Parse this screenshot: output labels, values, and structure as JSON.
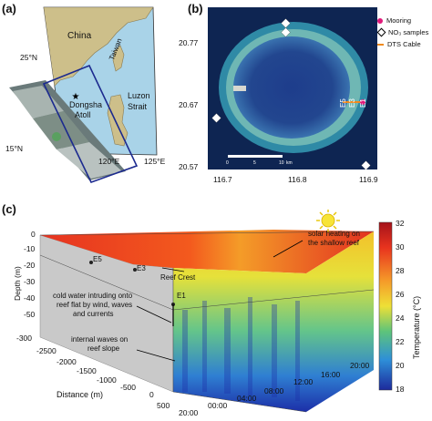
{
  "panel_a": {
    "label": "(a)",
    "places": {
      "china": "China",
      "taiwan": "Taiwan",
      "dongsha_line1": "Dongsha",
      "dongsha_line2": "Atoll",
      "luzon_line1": "Luzon",
      "luzon_line2": "Strait"
    },
    "ticks": {
      "lat_25": "25°N",
      "lat_15": "15°N",
      "lon_120": "120°E",
      "lon_125": "125°E"
    },
    "colors": {
      "sea": "#a9d3e8",
      "land": "#cdbf8a",
      "box": "#1c2a8f"
    }
  },
  "panel_b": {
    "label": "(b)",
    "y_ticks": [
      "20.77",
      "20.67",
      "20.57"
    ],
    "x_ticks": [
      "116.7",
      "116.8",
      "116.9"
    ],
    "scale_bar": {
      "zero": "0",
      "five": "5",
      "ten": "10",
      "unit": "km"
    },
    "station_labels": [
      "E5",
      "E3",
      "E1"
    ],
    "legend": [
      {
        "key": "mooring",
        "label": "Mooring",
        "color": "#e0197a"
      },
      {
        "key": "no3",
        "label": "NO₃ samples",
        "color": "#ffffff"
      },
      {
        "key": "dts",
        "label": "DTS Cable",
        "color": "#f08a1e"
      }
    ]
  },
  "panel_c": {
    "label": "(c)",
    "depth_label": "Depth (m)",
    "depth_ticks": [
      "0",
      "-10",
      "-20",
      "-30",
      "-40",
      "-50",
      "-300"
    ],
    "distance_label": "Distance (m)",
    "distance_ticks": [
      "-2500",
      "-2000",
      "-1500",
      "-1000",
      "-500",
      "0",
      "500"
    ],
    "time_ticks": [
      "20:00",
      "00:00",
      "04:00",
      "08:00",
      "12:00",
      "16:00",
      "20:00"
    ],
    "station_labels": [
      "E5",
      "E3",
      "E1"
    ],
    "annotations": {
      "solar_line1": "solar heating on",
      "solar_line2": "the shallow reef",
      "reef_crest": "Reef Crest",
      "cold_line1": "cold water intruding onto",
      "cold_line2": "reef flat by wind, waves",
      "cold_line3": "and currents",
      "internal_line1": "internal waves on",
      "internal_line2": "reef slope"
    },
    "colorbar": {
      "label": "Temperature (°C)",
      "ticks": [
        "32",
        "30",
        "28",
        "26",
        "24",
        "22",
        "20",
        "18"
      ],
      "min": 18,
      "max": 32
    }
  }
}
